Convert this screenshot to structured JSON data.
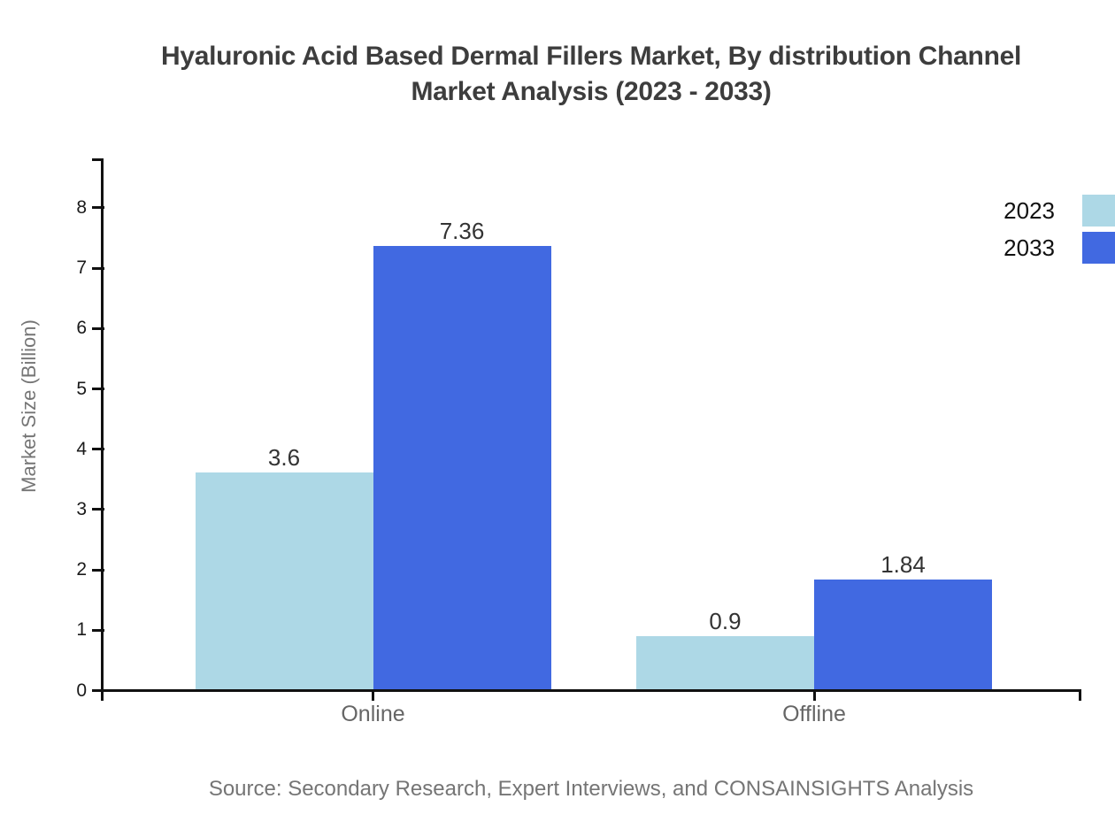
{
  "title": {
    "line1": "Hyaluronic Acid Based Dermal Fillers Market, By distribution Channel",
    "line2": "Market Analysis (2023 - 2033)"
  },
  "source": "Source: Secondary Research, Expert Interviews, and CONSAINSIGHTS Analysis",
  "chart_data": {
    "type": "bar",
    "title": "Hyaluronic Acid Based Dermal Fillers Market, By distribution Channel Market Analysis (2023 - 2033)",
    "categories": [
      "Online",
      "Offline"
    ],
    "series": [
      {
        "name": "2023",
        "color": "#ADD8E6",
        "values": [
          3.6,
          0.9
        ],
        "value_labels": [
          "3.6",
          "0.9"
        ]
      },
      {
        "name": "2033",
        "color": "#4169E1",
        "values": [
          7.36,
          1.84
        ],
        "value_labels": [
          "7.36",
          "1.84"
        ]
      }
    ],
    "xlabel": "",
    "ylabel": "Market Size (Billion)",
    "ylim": [
      0,
      8.8
    ],
    "y_ticks": [
      0,
      1,
      2,
      3,
      4,
      5,
      6,
      7,
      8
    ],
    "grid": false,
    "legend_position": "top-right",
    "colors": {
      "axis": "#111111",
      "title_text": "#3d3d3d",
      "tick_text": "#1a1a1a",
      "value_text": "#333333",
      "category_text": "#666666",
      "muted_text": "#757575"
    }
  }
}
